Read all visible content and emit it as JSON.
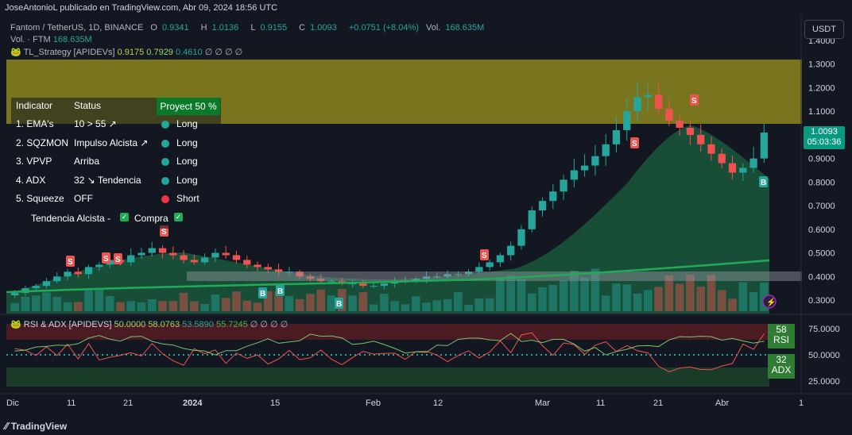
{
  "caption": "JoseAntonioL publicado en TradingView.com, Abr 09, 2024 18:56 UTC",
  "symbol": {
    "name": "Fantom / TetherUS, 1D, BINANCE",
    "open_label": "O",
    "open": "0.9341",
    "high_label": "H",
    "high": "1.0136",
    "low_label": "L",
    "low": "0.9155",
    "close_label": "C",
    "close": "1.0093",
    "change": "+0.0751 (+8.04%)",
    "vol_label": "Vol.",
    "vol": "168.635M"
  },
  "volume_line": {
    "label": "Vol. · FTM",
    "value": "168.635M"
  },
  "strategy": {
    "name": "TL_Strategy [APIDEVs]",
    "v1": "0.9175",
    "v2": "0.7929",
    "v3": "0.4610",
    "tail": "∅ ∅ ∅ ∅"
  },
  "currency": "USDT",
  "price_axis": [
    "1.4000",
    "1.3000",
    "1.2000",
    "1.1000",
    "0.9000",
    "0.8000",
    "0.7000",
    "0.6000",
    "0.5000",
    "0.4000",
    "0.3000"
  ],
  "price_tag": {
    "price": "1.0093",
    "countdown": "05:03:36"
  },
  "table": {
    "header": {
      "indicator": "Indicator",
      "status": "Status",
      "projection": "Proyect 50 %"
    },
    "rows": [
      {
        "indicator": "1. EMA's",
        "status": "10 > 55 ↗",
        "signal": "Long",
        "color": "#26a69a"
      },
      {
        "indicator": "2. SQZMON",
        "status": "Impulso Alcista ↗",
        "signal": "Long",
        "color": "#26a69a"
      },
      {
        "indicator": "3. VPVP",
        "status": "Arriba",
        "signal": "Long",
        "color": "#26a69a"
      },
      {
        "indicator": "4. ADX",
        "status": "32 ↘ Tendencia",
        "signal": "Long",
        "color": "#26a69a"
      },
      {
        "indicator": "5. Squeeze",
        "status": "OFF",
        "signal": "Short",
        "color": "#f23645"
      }
    ],
    "footer": {
      "trend": "Tendencia Alcista -",
      "buy": "Compra"
    }
  },
  "rsi_legend": {
    "name": "RSI & ADX [APIDEVS]",
    "v1": "50.0000",
    "v2": "58.0763",
    "v3": "53.5890",
    "v4": "55.7245",
    "tail": "∅ ∅ ∅ ∅"
  },
  "rsi_axis": [
    "75.0000",
    "50.0000",
    "25.0000"
  ],
  "rsi_tag": {
    "value": "58",
    "label": "RSI"
  },
  "adx_tag": {
    "value": "32",
    "label": "ADX"
  },
  "time_axis": [
    "Dic",
    "11",
    "21",
    "2024",
    "15",
    "Feb",
    "12",
    "Mar",
    "11",
    "21",
    "Abr",
    "1"
  ],
  "footer": "TradingView",
  "colors": {
    "up": "#26a69a",
    "down": "#ef5350",
    "background": "#131722",
    "band": "#7e7a1f"
  },
  "chart_data": {
    "type": "candlestick",
    "title": "Fantom / TetherUS, 1D, BINANCE",
    "ylim": [
      0.25,
      1.42
    ],
    "close_series_approx": [
      0.33,
      0.35,
      0.36,
      0.38,
      0.4,
      0.42,
      0.41,
      0.44,
      0.45,
      0.47,
      0.46,
      0.49,
      0.5,
      0.52,
      0.5,
      0.49,
      0.47,
      0.46,
      0.48,
      0.5,
      0.49,
      0.47,
      0.45,
      0.44,
      0.43,
      0.42,
      0.42,
      0.4,
      0.39,
      0.38,
      0.38,
      0.37,
      0.37,
      0.36,
      0.36,
      0.37,
      0.38,
      0.38,
      0.39,
      0.4,
      0.4,
      0.41,
      0.41,
      0.42,
      0.44,
      0.46,
      0.49,
      0.53,
      0.6,
      0.68,
      0.72,
      0.76,
      0.81,
      0.85,
      0.87,
      0.91,
      0.96,
      1.02,
      1.1,
      1.16,
      1.17,
      1.11,
      1.06,
      1.03,
      1.0,
      0.96,
      0.92,
      0.88,
      0.84,
      0.86,
      0.9,
      1.01
    ],
    "signals": [
      {
        "type": "S",
        "label": "S"
      },
      {
        "type": "B",
        "label": "B"
      }
    ]
  }
}
